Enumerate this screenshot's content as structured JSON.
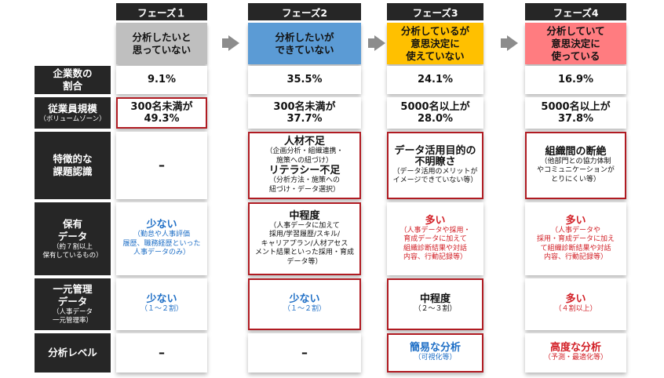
{
  "phases": [
    {
      "header": "フェーズ１",
      "title_lines": [
        "分析したいと",
        "思っていない"
      ],
      "color": "#bfbfbf"
    },
    {
      "header": "フェーズ2",
      "title_lines": [
        "分析したいが",
        "できていない"
      ],
      "color": "#5b9bd5"
    },
    {
      "header": "フェーズ3",
      "title_lines": [
        "分析しているが",
        "意思決定に",
        "使えていない"
      ],
      "color": "#ffc000"
    },
    {
      "header": "フェーズ4",
      "title_lines": [
        "分析していて",
        "意思決定に",
        "使っている"
      ],
      "color": "#ff7c80"
    }
  ],
  "rows": {
    "company_share": {
      "label_lines": [
        "企業数の",
        "割合"
      ],
      "values": [
        "9.1%",
        "35.5%",
        "24.1%",
        "16.9%"
      ]
    },
    "employee_size": {
      "label": "従業員規模",
      "sub": "（ボリュームゾーン）",
      "values": [
        [
          "300名未満が",
          "49.3%"
        ],
        [
          "300名未満が",
          "37.7%"
        ],
        [
          "5000名以上が",
          "28.0%"
        ],
        [
          "5000名以上が",
          "37.8%"
        ]
      ]
    },
    "issue": {
      "label_lines": [
        "特徴的な",
        "課題認識"
      ],
      "p1": "–",
      "p2": {
        "title1": "人材不足",
        "sub1": [
          "（企画分析・組織連携・",
          "施策への紐づけ）"
        ],
        "title2": "リテラシー不足",
        "sub2": [
          "（分析方法・施策への",
          "紐づけ・データ選択）"
        ]
      },
      "p3": {
        "title": [
          "データ活用目的の",
          "不明瞭さ"
        ],
        "sub": [
          "（データ活用のメリットが",
          "イメージできていない等）"
        ]
      },
      "p4": {
        "title": "組織間の断絶",
        "sub": [
          "（他部門との協力体制",
          "やコミュニケーションが",
          "とりにくい等）"
        ]
      }
    },
    "owned_data": {
      "label_lines": [
        "保有",
        "データ"
      ],
      "sub_lines": [
        "（約７割以上",
        "保有しているもの）"
      ],
      "p1": {
        "title": "少ない",
        "sub": [
          "（勤怠や人事評価",
          "履歴、職務経歴といった",
          "人事データのみ）"
        ]
      },
      "p2": {
        "title": "中程度",
        "sub": [
          "（人事データに加えて",
          "採用/学習履歴/スキル/",
          "キャリアプラン/人材アセス",
          "メント結果といった採用・育成",
          "データ等）"
        ]
      },
      "p3": {
        "title": "多い",
        "sub": [
          "（人事データや採用・",
          "育成データに加えて",
          "組織診断結果や対話",
          "内容、行動記録等）"
        ]
      },
      "p4": {
        "title": "多い",
        "sub": [
          "（人事データや",
          "採用・育成データに加え",
          "て組織診断結果や対話",
          "内容、行動記録等）"
        ]
      }
    },
    "unified": {
      "label_lines": [
        "一元管理",
        "データ"
      ],
      "sub_lines": [
        "（人事データ",
        "一元管理率）"
      ],
      "p1": {
        "title": "少ない",
        "sub": "（１～２割）"
      },
      "p2": {
        "title": "少ない",
        "sub": "（１～２割）"
      },
      "p3": {
        "title": "中程度",
        "sub": "（２～３割）"
      },
      "p4": {
        "title": "多い",
        "sub": "（４割以上）"
      }
    },
    "analysis_level": {
      "label": "分析レベル",
      "p1": "–",
      "p2": "–",
      "p3": {
        "title": "簡易な分析",
        "sub": "（可視化等）"
      },
      "p4": {
        "title": "高度な分析",
        "sub": "（予測・最適化等）"
      }
    }
  },
  "colors": {
    "highlight_border": "#b01b22",
    "blue_text": "#1f6fc6",
    "red_text": "#d21f26",
    "label_bg": "#262626",
    "arrow": "#8c8c8c"
  }
}
